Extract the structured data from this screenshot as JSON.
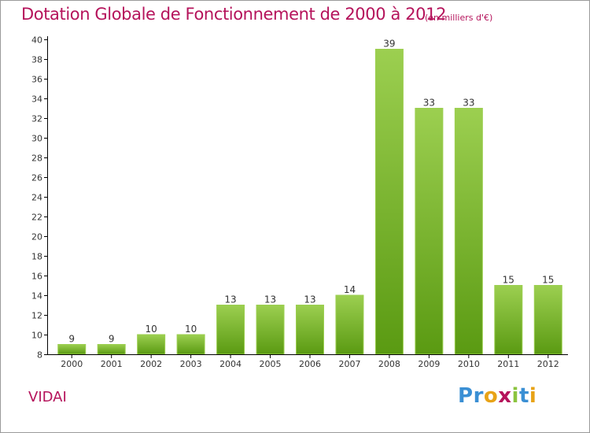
{
  "header": {
    "title": "Dotation Globale de Fonctionnement de 2000 à 2012",
    "subtitle": "(en milliers d'€)"
  },
  "footer": {
    "commune": "VIDAI",
    "logo": {
      "text": "Proxiti",
      "letters": [
        {
          "ch": "P",
          "color": "#3a8fd4"
        },
        {
          "ch": "r",
          "color": "#3a8fd4"
        },
        {
          "ch": "o",
          "color": "#e8a317"
        },
        {
          "ch": "x",
          "color": "#b5135b"
        },
        {
          "ch": "i",
          "color": "#8bc43f"
        },
        {
          "ch": "t",
          "color": "#3a8fd4"
        },
        {
          "ch": "i",
          "color": "#e8a317"
        }
      ]
    }
  },
  "colors": {
    "text": "#b5135b",
    "bar_light": "#9ccf50",
    "bar_dark": "#5a9a12",
    "axis": "#000000"
  },
  "chart_data": {
    "type": "bar",
    "title": "Dotation Globale de Fonctionnement de 2000 à 2012",
    "subtitle": "(en milliers d'€)",
    "categories": [
      "2000",
      "2001",
      "2002",
      "2003",
      "2004",
      "2005",
      "2006",
      "2007",
      "2008",
      "2009",
      "2010",
      "2011",
      "2012"
    ],
    "values": [
      9,
      9,
      10,
      10,
      13,
      13,
      13,
      14,
      39,
      33,
      33,
      15,
      15
    ],
    "ylim": [
      8,
      40
    ],
    "yticks": [
      8,
      10,
      12,
      14,
      16,
      18,
      20,
      22,
      24,
      26,
      28,
      30,
      32,
      34,
      36,
      38,
      40
    ],
    "grid": false,
    "legend": "none"
  }
}
